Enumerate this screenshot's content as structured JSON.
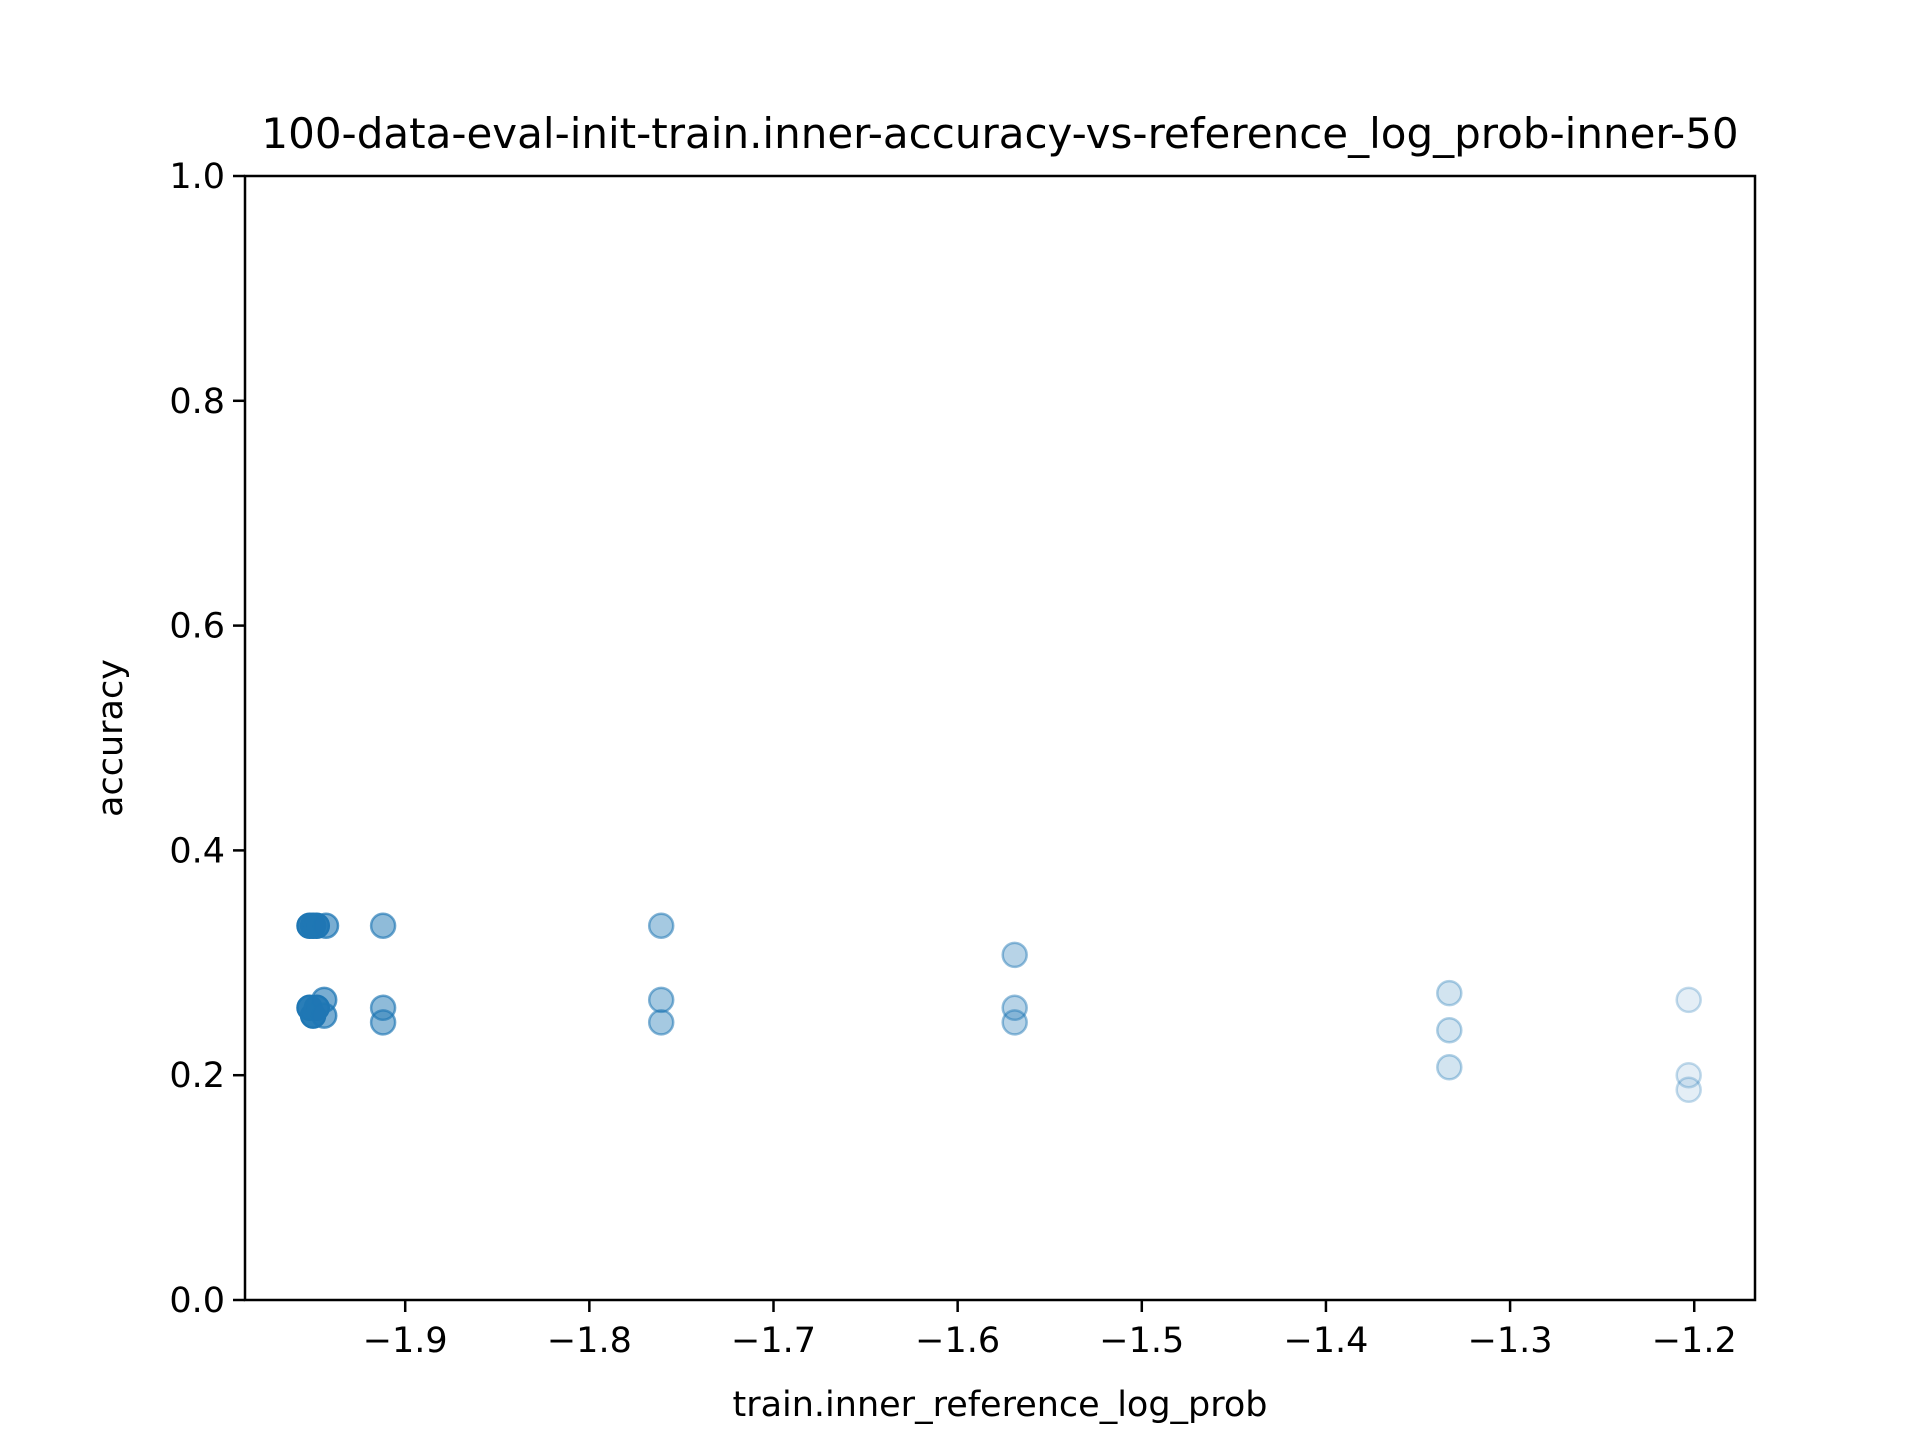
{
  "chart_data": {
    "type": "scatter",
    "title": "100-data-eval-init-train.inner-accuracy-vs-reference_log_prob-inner-50",
    "xlabel": "train.inner_reference_log_prob",
    "ylabel": "accuracy",
    "xlim": [
      -1.987,
      -1.167
    ],
    "ylim": [
      0.0,
      1.0
    ],
    "xticks": [
      -1.9,
      -1.8,
      -1.7,
      -1.6,
      -1.5,
      -1.4,
      -1.3,
      -1.2
    ],
    "xtick_labels": [
      "−1.9",
      "−1.8",
      "−1.7",
      "−1.6",
      "−1.5",
      "−1.4",
      "−1.3",
      "−1.2"
    ],
    "yticks": [
      0.0,
      0.2,
      0.4,
      0.6,
      0.8,
      1.0
    ],
    "ytick_labels": [
      "0.0",
      "0.2",
      "0.4",
      "0.6",
      "0.8",
      "1.0"
    ],
    "grid": false,
    "color": "#1f77b4",
    "points": [
      {
        "x": -1.952,
        "y": 0.333,
        "alpha": 0.95
      },
      {
        "x": -1.95,
        "y": 0.333,
        "alpha": 0.95
      },
      {
        "x": -1.948,
        "y": 0.333,
        "alpha": 0.9
      },
      {
        "x": -1.943,
        "y": 0.333,
        "alpha": 0.6
      },
      {
        "x": -1.952,
        "y": 0.26,
        "alpha": 0.95
      },
      {
        "x": -1.95,
        "y": 0.253,
        "alpha": 0.95
      },
      {
        "x": -1.948,
        "y": 0.26,
        "alpha": 0.9
      },
      {
        "x": -1.944,
        "y": 0.267,
        "alpha": 0.6
      },
      {
        "x": -1.944,
        "y": 0.253,
        "alpha": 0.6
      },
      {
        "x": -1.912,
        "y": 0.333,
        "alpha": 0.5
      },
      {
        "x": -1.912,
        "y": 0.26,
        "alpha": 0.5
      },
      {
        "x": -1.912,
        "y": 0.247,
        "alpha": 0.5
      },
      {
        "x": -1.761,
        "y": 0.333,
        "alpha": 0.4
      },
      {
        "x": -1.761,
        "y": 0.267,
        "alpha": 0.4
      },
      {
        "x": -1.761,
        "y": 0.247,
        "alpha": 0.4
      },
      {
        "x": -1.569,
        "y": 0.307,
        "alpha": 0.32
      },
      {
        "x": -1.569,
        "y": 0.26,
        "alpha": 0.32
      },
      {
        "x": -1.569,
        "y": 0.247,
        "alpha": 0.32
      },
      {
        "x": -1.333,
        "y": 0.273,
        "alpha": 0.2
      },
      {
        "x": -1.333,
        "y": 0.24,
        "alpha": 0.2
      },
      {
        "x": -1.333,
        "y": 0.207,
        "alpha": 0.2
      },
      {
        "x": -1.203,
        "y": 0.267,
        "alpha": 0.12
      },
      {
        "x": -1.203,
        "y": 0.2,
        "alpha": 0.12
      },
      {
        "x": -1.203,
        "y": 0.187,
        "alpha": 0.12
      }
    ]
  }
}
